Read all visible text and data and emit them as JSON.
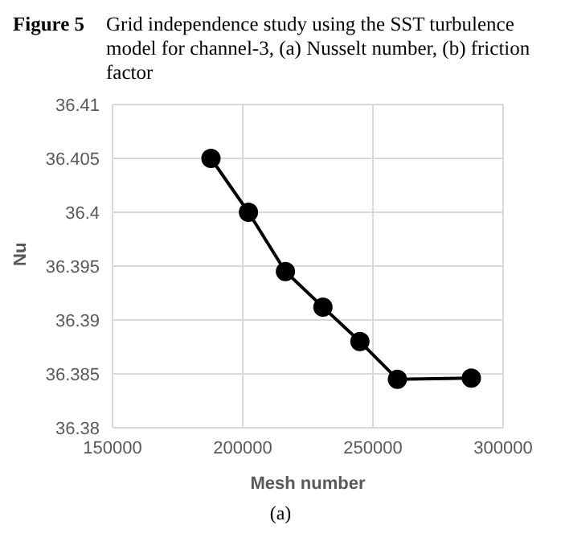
{
  "chart_data": {
    "type": "line",
    "title": "Figure 5",
    "subtitle": "Grid independence study using the SST turbulence model for channel-3, (a) Nusselt number, (b) friction factor",
    "xlabel": "Mesh number",
    "ylabel": "Nu",
    "annotations": [
      "(a)"
    ],
    "x": [
      187800,
      202200,
      216400,
      230800,
      245000,
      259400,
      287800
    ],
    "series": [
      {
        "color": "#000000",
        "values": [
          36.405,
          36.4,
          36.3945,
          36.3912,
          36.388,
          36.3845,
          36.3846
        ]
      }
    ],
    "xlim": [
      150000,
      300000
    ],
    "xticks": [
      150000,
      200000,
      250000,
      300000
    ],
    "ylim": [
      36.38,
      36.41
    ],
    "yticks": [
      36.38,
      36.385,
      36.39,
      36.395,
      36.4,
      36.405,
      36.41
    ],
    "grid": true,
    "marker": "circle",
    "line_style": "solid"
  }
}
